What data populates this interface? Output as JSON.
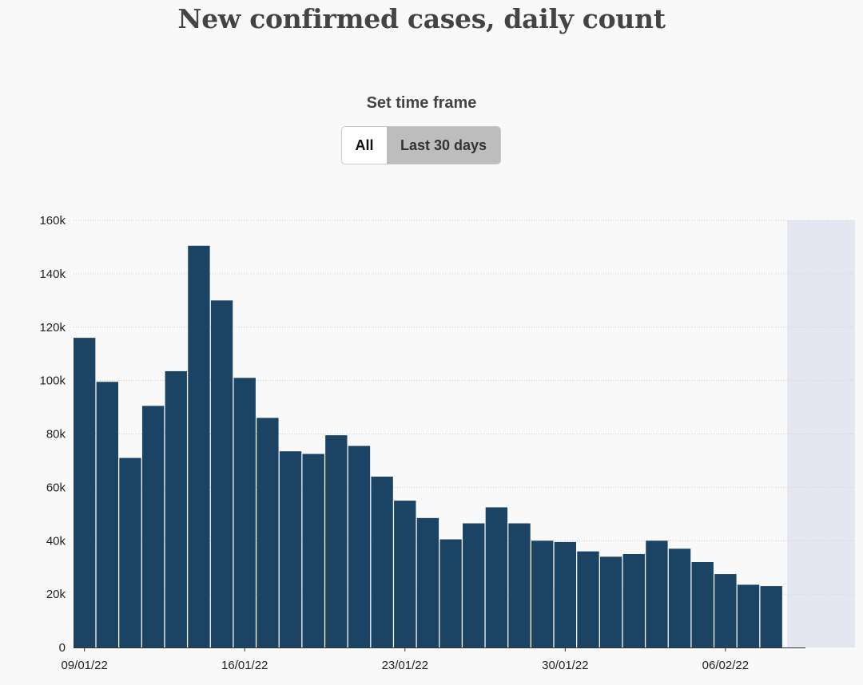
{
  "title": "New confirmed cases, daily count",
  "timeframe": {
    "label": "Set time frame",
    "options": [
      "All",
      "Last 30 days"
    ],
    "selected": "Last 30 days"
  },
  "colors": {
    "bar": "#1b4363",
    "shade": "#e4e6f2",
    "grid": "#cfcfd4"
  },
  "chart_data": {
    "type": "bar",
    "title": "New confirmed cases, daily count",
    "xlabel": "",
    "ylabel": "",
    "ylim": [
      0,
      160000
    ],
    "yticks": [
      0,
      20000,
      40000,
      60000,
      80000,
      100000,
      120000,
      140000,
      160000
    ],
    "ytick_labels": [
      "0",
      "20k",
      "40k",
      "60k",
      "80k",
      "100k",
      "120k",
      "140k",
      "160k"
    ],
    "xtick_labels": [
      "09/01/22",
      "16/01/22",
      "23/01/22",
      "30/01/22",
      "06/02/22"
    ],
    "xtick_categories": [
      "09/01/22",
      "16/01/22",
      "23/01/22",
      "30/01/22",
      "06/02/22"
    ],
    "grid": true,
    "categories": [
      "09/01/22",
      "10/01/22",
      "11/01/22",
      "12/01/22",
      "13/01/22",
      "14/01/22",
      "15/01/22",
      "16/01/22",
      "17/01/22",
      "18/01/22",
      "19/01/22",
      "20/01/22",
      "21/01/22",
      "22/01/22",
      "23/01/22",
      "24/01/22",
      "25/01/22",
      "26/01/22",
      "27/01/22",
      "28/01/22",
      "29/01/22",
      "30/01/22",
      "31/01/22",
      "01/02/22",
      "02/02/22",
      "03/02/22",
      "04/02/22",
      "05/02/22",
      "06/02/22",
      "07/02/22",
      "08/02/22"
    ],
    "values": [
      116000,
      99500,
      71000,
      90500,
      103500,
      150500,
      130000,
      101000,
      86000,
      73500,
      72500,
      79500,
      75500,
      64000,
      55000,
      48500,
      40500,
      46500,
      52500,
      46500,
      40000,
      39500,
      36000,
      34000,
      35000,
      40000,
      37000,
      32000,
      27500,
      23500,
      23000
    ]
  }
}
